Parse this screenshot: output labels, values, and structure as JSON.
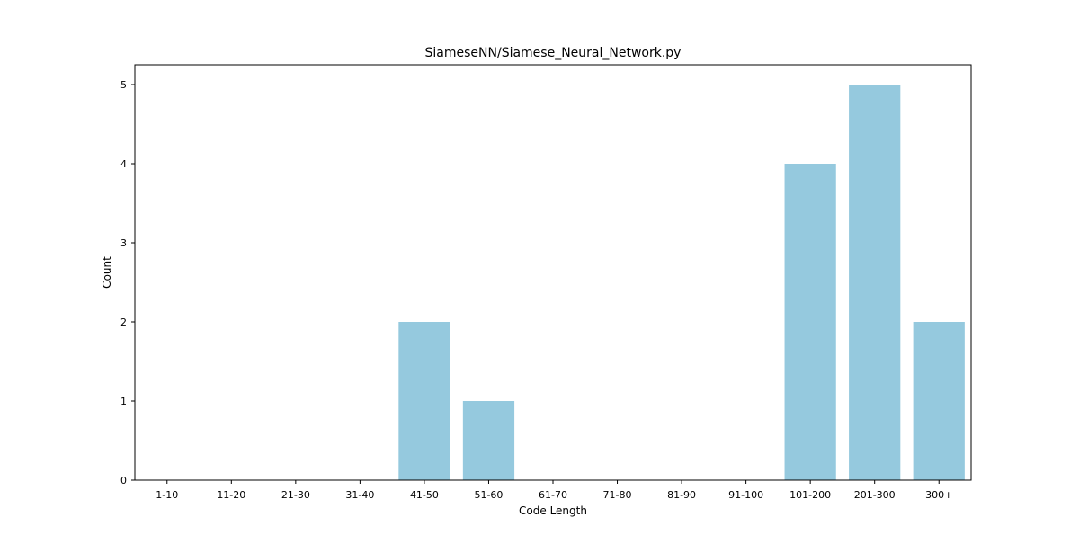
{
  "chart_data": {
    "type": "bar",
    "title": "SiameseNN/Siamese_Neural_Network.py",
    "xlabel": "Code Length",
    "ylabel": "Count",
    "categories": [
      "1-10",
      "11-20",
      "21-30",
      "31-40",
      "41-50",
      "51-60",
      "61-70",
      "71-80",
      "81-90",
      "91-100",
      "101-200",
      "201-300",
      "300+"
    ],
    "values": [
      0,
      0,
      0,
      0,
      2,
      1,
      0,
      0,
      0,
      0,
      4,
      5,
      2
    ],
    "ylim": [
      0,
      5.25
    ],
    "yticks": [
      0,
      1,
      2,
      3,
      4,
      5
    ],
    "bar_color": "#95c9de",
    "grid": false,
    "legend": "none"
  }
}
